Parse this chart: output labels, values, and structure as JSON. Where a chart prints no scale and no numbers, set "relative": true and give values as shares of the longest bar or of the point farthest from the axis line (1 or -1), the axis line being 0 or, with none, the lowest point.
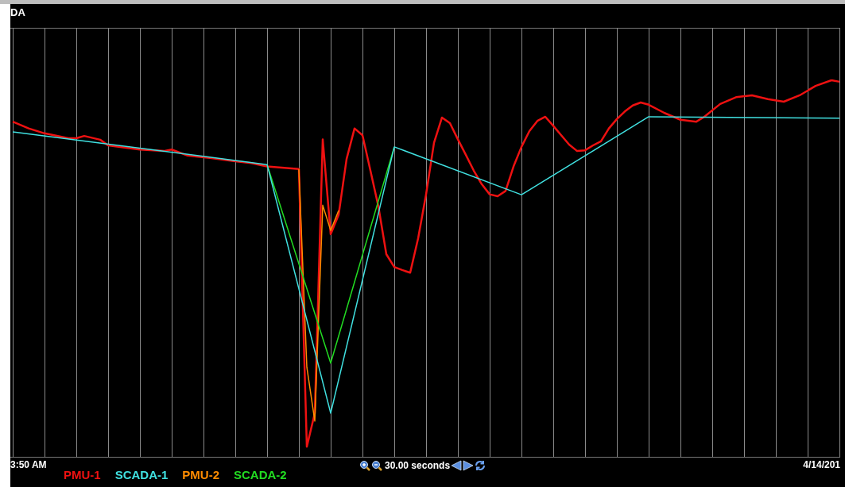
{
  "chart_data": {
    "type": "line",
    "title": "DA",
    "relative": true,
    "grid": "x",
    "legend": "bottom left",
    "marker": "none",
    "line_style": "solid",
    "categories": [
      null,
      null,
      null,
      null,
      null,
      null,
      null,
      null,
      null,
      null,
      null,
      null,
      null,
      null,
      null,
      null,
      null,
      null,
      null,
      null,
      null,
      null,
      null,
      null,
      null,
      null,
      null,
      null,
      null,
      null,
      null,
      null,
      null,
      null,
      null,
      null,
      null,
      null,
      null,
      null,
      null,
      null,
      null,
      null,
      null,
      null,
      null,
      null,
      null,
      null,
      null,
      null,
      null,
      null,
      null,
      null,
      null,
      null,
      null,
      null,
      null,
      null,
      null,
      null,
      null,
      null,
      null,
      null,
      null,
      null,
      null,
      null,
      null,
      null,
      null,
      null,
      null,
      null,
      null,
      null,
      null,
      null,
      null,
      null,
      null,
      null,
      null,
      null,
      null,
      null,
      null,
      null,
      null,
      null,
      null,
      null,
      null,
      null,
      null,
      null,
      null,
      null,
      null,
      null,
      null
    ],
    "series": [
      {
        "name": "SCADA-1",
        "color": "#40e0e0",
        "values": [
          0.863,
          null,
          null,
          null,
          null,
          null,
          null,
          null,
          null,
          null,
          null,
          null,
          null,
          null,
          null,
          null,
          null,
          null,
          null,
          null,
          null,
          null,
          null,
          null,
          null,
          null,
          null,
          null,
          null,
          null,
          null,
          null,
          0.776,
          null,
          null,
          null,
          null,
          null,
          null,
          null,
          0.116,
          null,
          null,
          null,
          null,
          null,
          null,
          null,
          0.823,
          null,
          null,
          null,
          null,
          null,
          null,
          null,
          null,
          null,
          null,
          null,
          null,
          null,
          null,
          null,
          0.696,
          null,
          null,
          null,
          null,
          null,
          null,
          null,
          null,
          null,
          null,
          null,
          null,
          null,
          null,
          null,
          0.903,
          null,
          null,
          null,
          null,
          null,
          null,
          null,
          null,
          null,
          null,
          null,
          null,
          null,
          null,
          null,
          null,
          null,
          null,
          null,
          null,
          null,
          null,
          null,
          0.899
        ]
      },
      {
        "name": "SCADA-2",
        "color": "#22dd22",
        "values": [
          null,
          null,
          null,
          null,
          null,
          null,
          null,
          null,
          null,
          null,
          null,
          null,
          null,
          null,
          null,
          null,
          null,
          null,
          null,
          null,
          null,
          null,
          null,
          null,
          null,
          null,
          null,
          null,
          null,
          null,
          null,
          null,
          0.776,
          null,
          null,
          null,
          null,
          null,
          null,
          null,
          0.249,
          null,
          null,
          null,
          null,
          null,
          null,
          null,
          0.823,
          null,
          null,
          null,
          null,
          null,
          null,
          null,
          null,
          null,
          null,
          null,
          null,
          null,
          null,
          null,
          null,
          null,
          null,
          null,
          null,
          null,
          null,
          null,
          null,
          null,
          null,
          null,
          null,
          null,
          null,
          null,
          null,
          null,
          null,
          null,
          null,
          null,
          null,
          null,
          null,
          null,
          null,
          null,
          null,
          null,
          null,
          null,
          null,
          null,
          null,
          null,
          null,
          null,
          null,
          null,
          null
        ]
      },
      {
        "name": "PMU-2",
        "color": "#ff8c00",
        "values": [
          null,
          null,
          null,
          null,
          null,
          null,
          null,
          null,
          null,
          null,
          null,
          null,
          null,
          null,
          null,
          null,
          null,
          null,
          null,
          null,
          null,
          null,
          null,
          null,
          null,
          null,
          null,
          null,
          null,
          null,
          null,
          null,
          null,
          null,
          null,
          null,
          0.764,
          0.238,
          0.095,
          0.668,
          0.601,
          0.654,
          null,
          null,
          null,
          null,
          null,
          null,
          null,
          null,
          null,
          null,
          null,
          null,
          null,
          null,
          null,
          null,
          null,
          null,
          null,
          null,
          null,
          null,
          null,
          null,
          null,
          null,
          null,
          null,
          null,
          null,
          null,
          null,
          null,
          null,
          null,
          null,
          null,
          null,
          null,
          null,
          null,
          null,
          null,
          null,
          null,
          null,
          null,
          null,
          null,
          null,
          null,
          null,
          null,
          null,
          null,
          null,
          null,
          null,
          null,
          null,
          null,
          null,
          null
        ]
      },
      {
        "name": "PMU-1",
        "color": "#ee1111",
        "values": [
          0.89,
          null,
          0.872,
          null,
          0.859,
          null,
          null,
          0.846,
          0.846,
          0.852,
          null,
          0.842,
          0.827,
          null,
          null,
          null,
          0.816,
          null,
          null,
          0.812,
          0.816,
          null,
          0.8,
          null,
          null,
          0.793,
          null,
          null,
          0.785,
          null,
          0.78,
          null,
          0.771,
          null,
          null,
          null,
          0.764,
          0.027,
          0.116,
          0.843,
          0.591,
          0.643,
          0.791,
          0.872,
          0.854,
          0.76,
          0.665,
          0.538,
          0.504,
          0.496,
          0.489,
          0.58,
          0.697,
          0.834,
          0.901,
          0.886,
          0.843,
          0.802,
          0.76,
          0.724,
          0.697,
          0.692,
          0.706,
          0.771,
          0.823,
          0.865,
          0.892,
          0.903,
          0.879,
          0.854,
          0.829,
          0.812,
          0.814,
          0.827,
          0.838,
          0.872,
          0.897,
          0.917,
          0.933,
          0.941,
          0.935,
          null,
          0.913,
          null,
          0.895,
          null,
          0.89,
          0.903,
          null,
          0.937,
          null,
          0.955,
          null,
          0.96,
          null,
          0.95,
          null,
          0.943,
          null,
          0.96,
          null,
          0.985,
          null,
          1,
          0.996
        ]
      }
    ],
    "annotations": [
      "3:50 AM",
      "30.00 seconds",
      "4/14/201"
    ]
  }
}
